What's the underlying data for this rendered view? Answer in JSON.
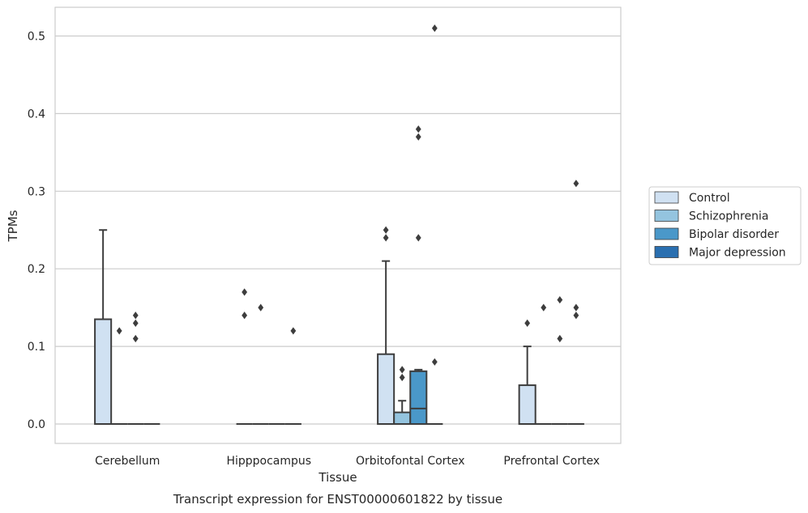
{
  "chart_data": {
    "type": "box",
    "ylabel": "TPMs",
    "xlabel": "Tissue",
    "caption": "Transcript expression for ENST00000601822 by tissue",
    "ylim": [
      -0.025,
      0.537
    ],
    "yticks": [
      "0.0",
      "0.1",
      "0.2",
      "0.3",
      "0.4",
      "0.5"
    ],
    "grid": "horizontal",
    "legend_position": "right",
    "categories": [
      "Cerebellum",
      "Hipppocampus",
      "Orbitofontal Cortex",
      "Prefrontal Cortex"
    ],
    "series": [
      {
        "name": "Control",
        "color": "#d0e1f2",
        "boxes": [
          {
            "q1": 0,
            "median": 0,
            "q3": 0.135,
            "whisker_low": 0,
            "whisker_high": 0.25,
            "outliers": []
          },
          {
            "q1": 0,
            "median": 0,
            "q3": 0,
            "whisker_low": 0,
            "whisker_high": 0,
            "outliers": [
              0.14,
              0.17
            ]
          },
          {
            "q1": 0,
            "median": 0,
            "q3": 0.09,
            "whisker_low": 0,
            "whisker_high": 0.21,
            "outliers": [
              0.24,
              0.25
            ]
          },
          {
            "q1": 0,
            "median": 0,
            "q3": 0.05,
            "whisker_low": 0,
            "whisker_high": 0.1,
            "outliers": [
              0.13
            ]
          }
        ]
      },
      {
        "name": "Schizophrenia",
        "color": "#94c4df",
        "boxes": [
          {
            "q1": 0,
            "median": 0,
            "q3": 0,
            "whisker_low": 0,
            "whisker_high": 0,
            "outliers": [
              0.12
            ]
          },
          {
            "q1": 0,
            "median": 0,
            "q3": 0,
            "whisker_low": 0,
            "whisker_high": 0,
            "outliers": [
              0.15
            ]
          },
          {
            "q1": 0,
            "median": 0,
            "q3": 0.015,
            "whisker_low": 0,
            "whisker_high": 0.03,
            "outliers": [
              0.06,
              0.07
            ]
          },
          {
            "q1": 0,
            "median": 0,
            "q3": 0,
            "whisker_low": 0,
            "whisker_high": 0,
            "outliers": [
              0.15
            ]
          }
        ]
      },
      {
        "name": "Bipolar disorder",
        "color": "#4a98c9",
        "boxes": [
          {
            "q1": 0,
            "median": 0,
            "q3": 0,
            "whisker_low": 0,
            "whisker_high": 0,
            "outliers": [
              0.11,
              0.13,
              0.14
            ]
          },
          {
            "q1": 0,
            "median": 0,
            "q3": 0,
            "whisker_low": 0,
            "whisker_high": 0,
            "outliers": []
          },
          {
            "q1": 0,
            "median": 0.02,
            "q3": 0.068,
            "whisker_low": 0,
            "whisker_high": 0.07,
            "outliers": [
              0.24,
              0.37,
              0.38
            ]
          },
          {
            "q1": 0,
            "median": 0,
            "q3": 0,
            "whisker_low": 0,
            "whisker_high": 0,
            "outliers": [
              0.11,
              0.16
            ]
          }
        ]
      },
      {
        "name": "Major depression",
        "color": "#2a6fb0",
        "boxes": [
          {
            "q1": 0,
            "median": 0,
            "q3": 0,
            "whisker_low": 0,
            "whisker_high": 0,
            "outliers": []
          },
          {
            "q1": 0,
            "median": 0,
            "q3": 0,
            "whisker_low": 0,
            "whisker_high": 0,
            "outliers": [
              0.12
            ]
          },
          {
            "q1": 0,
            "median": 0,
            "q3": 0,
            "whisker_low": 0,
            "whisker_high": 0,
            "outliers": [
              0.08,
              0.51
            ]
          },
          {
            "q1": 0,
            "median": 0,
            "q3": 0,
            "whisker_low": 0,
            "whisker_high": 0,
            "outliers": [
              0.14,
              0.15,
              0.31
            ]
          }
        ]
      }
    ]
  }
}
